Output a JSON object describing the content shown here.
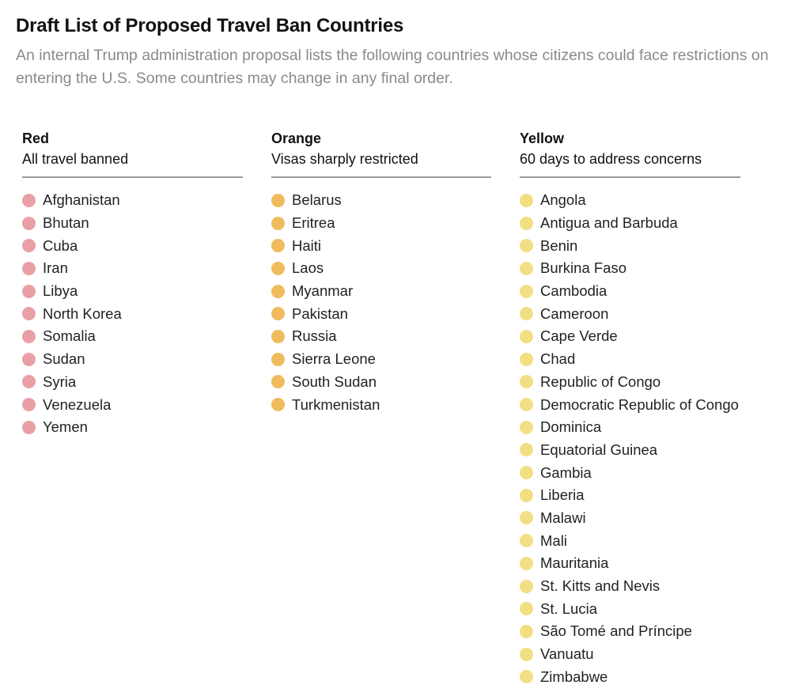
{
  "header": {
    "title": "Draft List of Proposed Travel Ban Countries",
    "subtitle": "An internal Trump administration proposal lists the following countries whose citizens could face restrictions on entering the U.S. Some countries may change in any final order."
  },
  "groups": [
    {
      "name": "Red",
      "description": "All travel banned",
      "dot_color": "#e8a0a6",
      "countries": [
        "Afghanistan",
        "Bhutan",
        "Cuba",
        "Iran",
        "Libya",
        "North Korea",
        "Somalia",
        "Sudan",
        "Syria",
        "Venezuela",
        "Yemen"
      ]
    },
    {
      "name": "Orange",
      "description": "Visas sharply restricted",
      "dot_color": "#f0bb5c",
      "countries": [
        "Belarus",
        "Eritrea",
        "Haiti",
        "Laos",
        "Myanmar",
        "Pakistan",
        "Russia",
        "Sierra Leone",
        "South Sudan",
        "Turkmenistan"
      ]
    },
    {
      "name": "Yellow",
      "description": "60 days to address concerns",
      "dot_color": "#f3df83",
      "countries": [
        "Angola",
        "Antigua and Barbuda",
        "Benin",
        "Burkina Faso",
        "Cambodia",
        "Cameroon",
        "Cape Verde",
        "Chad",
        "Republic of Congo",
        "Democratic Republic of Congo",
        "Dominica",
        "Equatorial Guinea",
        "Gambia",
        "Liberia",
        "Malawi",
        "Mali",
        "Mauritania",
        "St. Kitts and Nevis",
        "St. Lucia",
        "São Tomé and Príncipe",
        "Vanuatu",
        "Zimbabwe"
      ]
    }
  ]
}
